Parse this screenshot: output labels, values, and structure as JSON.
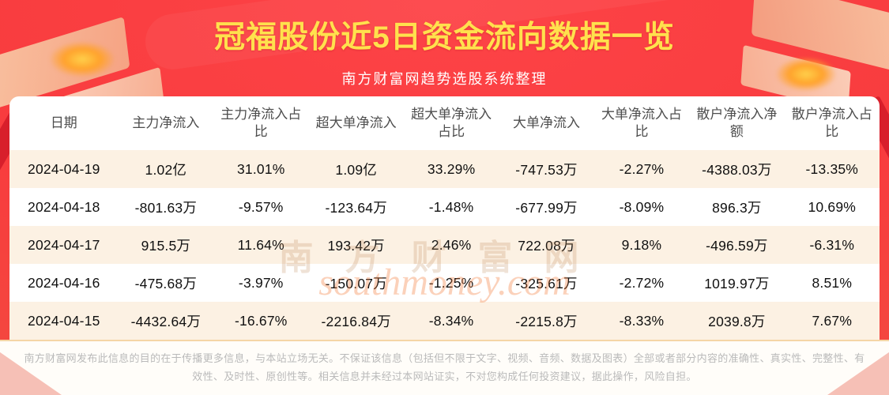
{
  "header": {
    "title": "冠福股份近5日资金流向数据一览",
    "subtitle": "南方财富网趋势选股系统整理"
  },
  "chart_data": {
    "type": "table",
    "title": "冠福股份近5日资金流向数据一览",
    "columns": [
      "日期",
      "主力净流入",
      "主力净流入占比",
      "超大单净流入",
      "超大单净流入占比",
      "大单净流入",
      "大单净流入占比",
      "散户净流入净额",
      "散户净流入占比"
    ],
    "rows": [
      [
        "2024-04-19",
        "1.02亿",
        "31.01%",
        "1.09亿",
        "33.29%",
        "-747.53万",
        "-2.27%",
        "-4388.03万",
        "-13.35%"
      ],
      [
        "2024-04-18",
        "-801.63万",
        "-9.57%",
        "-123.64万",
        "-1.48%",
        "-677.99万",
        "-8.09%",
        "896.3万",
        "10.69%"
      ],
      [
        "2024-04-17",
        "915.5万",
        "11.64%",
        "193.42万",
        "2.46%",
        "722.08万",
        "9.18%",
        "-496.59万",
        "-6.31%"
      ],
      [
        "2024-04-16",
        "-475.68万",
        "-3.97%",
        "-150.07万",
        "-1.25%",
        "-325.61万",
        "-2.72%",
        "1019.97万",
        "8.51%"
      ],
      [
        "2024-04-15",
        "-4432.64万",
        "-16.67%",
        "-2216.84万",
        "-8.34%",
        "-2215.8万",
        "-8.33%",
        "2039.8万",
        "7.67%"
      ]
    ]
  },
  "watermark": {
    "cn": "南方财富网",
    "en": "southmoney.com"
  },
  "footer": {
    "disclaimer": "南方财富网发布此信息的目的在于传播更多信息，与本站立场无关。不保证该信息（包括但不限于文字、视频、音频、数据及图表）全部或者部分内容的准确性、真实性、完整性、有效性、及时性、原创性等。相关信息并未经过本网站证实，不对您构成任何投资建议，据此操作，风险自担。"
  },
  "colors": {
    "background_red": "#f83c3e",
    "title_yellow": "#ffe14d",
    "row_alt_cream": "#fcf1e3",
    "card_white": "#ffffff",
    "footer_text_gray": "#bababa",
    "ribbon_dark_red": "#d81f2b",
    "deco_peach": "#f9cba8"
  }
}
